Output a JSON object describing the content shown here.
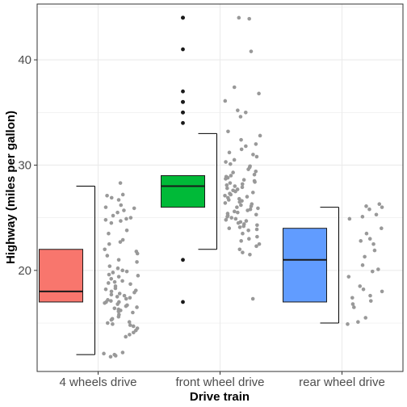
{
  "chart_data": {
    "type": "boxplot",
    "xlabel": "Drive train",
    "ylabel": "Highway (miles per gallon)",
    "ylim": [
      10.4,
      45.3
    ],
    "yticks": [
      20,
      30,
      40
    ],
    "grid": true,
    "colors": {
      "panel_border": "#333333",
      "grid": "#ebebeb",
      "outlier": "#1a1a1a",
      "jitter": "#999999",
      "axis_text": "#4d4d4d"
    },
    "groups": [
      {
        "label": "4 wheels drive",
        "fill": "#f8766d",
        "box": {
          "lower_whisker": 12,
          "q1": 17,
          "median": 18,
          "q3": 22,
          "upper_whisker": 28
        },
        "outliers": [],
        "jitter": [
          28.3,
          27.2,
          27.1,
          26.9,
          26.7,
          26.2,
          26.0,
          25.9,
          25.7,
          25.5,
          25.2,
          25.0,
          24.9,
          24.8,
          24.7,
          24.5,
          23.8,
          23.5,
          22.9,
          22.7,
          22.5,
          22.0,
          21.8,
          21.6,
          21.4,
          21.0,
          20.8,
          20.4,
          20.2,
          20.0,
          19.9,
          19.8,
          19.6,
          19.5,
          19.4,
          19.2,
          19.0,
          18.9,
          18.8,
          18.7,
          18.5,
          18.3,
          18.2,
          18.1,
          18.0,
          17.9,
          17.8,
          17.7,
          17.6,
          17.5,
          17.4,
          17.3,
          17.2,
          17.1,
          17.0,
          17.0,
          16.9,
          16.8,
          16.7,
          16.6,
          16.5,
          16.4,
          16.3,
          16.2,
          16.1,
          16.0,
          15.8,
          15.6,
          15.4,
          15.3,
          15.1,
          15.0,
          14.9,
          14.8,
          14.7,
          14.5,
          14.3,
          14.1,
          13.9,
          13.7,
          12.2,
          12.1,
          12.0,
          11.9,
          11.8
        ]
      },
      {
        "label": "front wheel drive",
        "fill": "#00ba38",
        "box": {
          "lower_whisker": 22,
          "q1": 26,
          "median": 28,
          "q3": 29,
          "upper_whisker": 33
        },
        "outliers": [
          44,
          44,
          41,
          37,
          36,
          36,
          35,
          35,
          34,
          21,
          17
        ],
        "jitter": [
          44.0,
          43.9,
          40.8,
          37.4,
          36.8,
          36.1,
          35.2,
          35.0,
          34.6,
          33.2,
          32.8,
          32.4,
          32.0,
          31.8,
          31.5,
          31.2,
          31.0,
          30.8,
          30.5,
          30.3,
          30.1,
          29.9,
          29.8,
          29.6,
          29.4,
          29.3,
          29.1,
          29.0,
          28.9,
          28.8,
          28.7,
          28.6,
          28.5,
          28.4,
          28.3,
          28.2,
          28.1,
          28.0,
          27.9,
          27.8,
          27.7,
          27.6,
          27.5,
          27.4,
          27.3,
          27.2,
          27.1,
          27.0,
          26.9,
          26.8,
          26.7,
          26.6,
          26.5,
          26.4,
          26.3,
          26.2,
          26.1,
          26.0,
          25.9,
          25.8,
          25.7,
          25.6,
          25.5,
          25.4,
          25.3,
          25.2,
          25.1,
          25.0,
          24.9,
          24.8,
          24.7,
          24.6,
          24.5,
          24.4,
          24.3,
          24.2,
          24.1,
          24.0,
          23.9,
          23.8,
          23.5,
          23.2,
          23.0,
          22.8,
          22.5,
          22.3,
          22.0,
          21.7,
          21.5,
          17.3
        ]
      },
      {
        "label": "rear wheel drive",
        "fill": "#619cff",
        "box": {
          "lower_whisker": 15,
          "q1": 17,
          "median": 21,
          "q3": 24,
          "upper_whisker": 26
        },
        "outliers": [],
        "jitter": [
          26.3,
          26.1,
          26.0,
          25.8,
          25.3,
          25.1,
          24.9,
          24.0,
          23.5,
          23.0,
          22.8,
          22.5,
          21.9,
          21.3,
          20.5,
          20.1,
          19.9,
          19.4,
          18.5,
          18.2,
          18.0,
          17.6,
          17.4,
          17.1,
          16.8,
          16.5,
          15.5,
          15.1,
          14.9
        ]
      }
    ]
  }
}
